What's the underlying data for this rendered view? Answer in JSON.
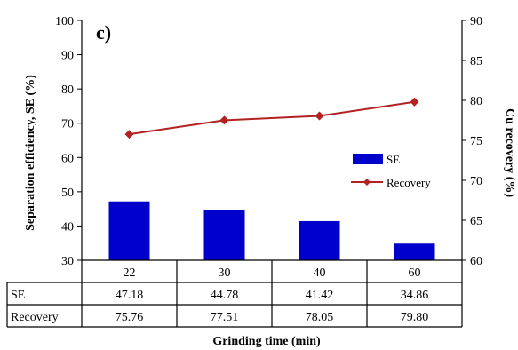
{
  "chart_data": {
    "type": "bar",
    "panel_label": "c)",
    "categories": [
      "22",
      "30",
      "40",
      "60"
    ],
    "xlabel": "Grinding  time (min)",
    "ylabel_left": "Separation efficiency, SE (%)",
    "ylabel_right": "Cu recovery (%)",
    "ylim_left": [
      30,
      100
    ],
    "ylim_right": [
      60,
      90
    ],
    "yticks_left": [
      "30",
      "40",
      "50",
      "60",
      "70",
      "80",
      "90",
      "100"
    ],
    "yticks_right": [
      "60",
      "65",
      "70",
      "75",
      "80",
      "85",
      "90"
    ],
    "legend_position": "right",
    "grid": false,
    "series": [
      {
        "name": "SE",
        "kind": "bar",
        "axis": "left",
        "color": "#0000cc",
        "values": [
          47.18,
          44.78,
          41.42,
          34.86
        ],
        "labels": [
          "47.18",
          "44.78",
          "41.42",
          "34.86"
        ]
      },
      {
        "name": "Recovery",
        "kind": "line",
        "axis": "right",
        "color": "#b22222",
        "values": [
          75.76,
          77.51,
          78.05,
          79.8
        ],
        "labels": [
          "75.76",
          "77.51",
          "78.05",
          "79.80"
        ]
      }
    ]
  }
}
